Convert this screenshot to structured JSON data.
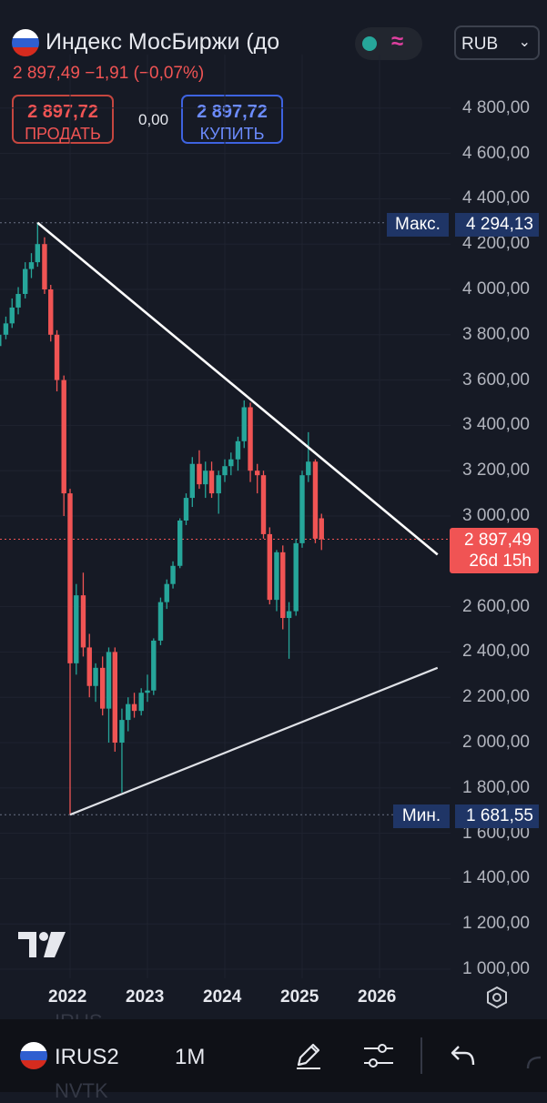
{
  "header": {
    "title": "Индекс МосБиржи (до",
    "currency": "RUB",
    "price_line": "2 897,49  −1,91 (−0,07%)"
  },
  "trade": {
    "sell_price": "2 897,72",
    "sell_label": "ПРОДАТЬ",
    "spread": "0,00",
    "buy_price": "2 897,72",
    "buy_label": "КУПИТЬ"
  },
  "chart_labels": {
    "max_label": "Макс.",
    "max_value": "4 294,13",
    "min_label": "Мин.",
    "min_value": "1 681,55",
    "last_price": "2 897,49",
    "countdown": "26d 15h"
  },
  "bottom": {
    "symbol": "IRUS2",
    "interval": "1M",
    "ghost_top": "IRUS",
    "ghost_bottom": "NVTK"
  },
  "colors": {
    "background": "#161a25",
    "up": "#26a69a",
    "down": "#f05454",
    "trendline": "#ffffff",
    "label_bg": "#1f3566"
  },
  "chart_data": {
    "type": "candlestick",
    "interval": "monthly",
    "y_ticks": [
      "4 800,00",
      "4 600,00",
      "4 400,00",
      "4 200,00",
      "4 000,00",
      "3 800,00",
      "3 600,00",
      "3 400,00",
      "3 200,00",
      "3 000,00",
      "2 600,00",
      "2 400,00",
      "2 200,00",
      "2 000,00",
      "1 800,00",
      "1 600,00",
      "1 400,00",
      "1 200,00",
      "1 000,00"
    ],
    "y_tick_values": [
      4800,
      4600,
      4400,
      4200,
      4000,
      3800,
      3600,
      3400,
      3200,
      3000,
      2600,
      2400,
      2200,
      2000,
      1800,
      1600,
      1400,
      1200,
      1000
    ],
    "x_ticks": [
      "2022",
      "2023",
      "2024",
      "2025",
      "2026"
    ],
    "ylim": [
      950,
      5050
    ],
    "xlim": [
      2021.0,
      2026.75
    ],
    "grid": true,
    "max": 4294.13,
    "min": 1681.55,
    "last": 2897.49,
    "candles": [
      {
        "t": 2021.0,
        "o": 3770,
        "h": 3800,
        "l": 3700,
        "c": 3750
      },
      {
        "t": 2021.08,
        "o": 3750,
        "h": 3820,
        "l": 3680,
        "c": 3800
      },
      {
        "t": 2021.17,
        "o": 3800,
        "h": 3880,
        "l": 3780,
        "c": 3850
      },
      {
        "t": 2021.25,
        "o": 3850,
        "h": 3960,
        "l": 3830,
        "c": 3920
      },
      {
        "t": 2021.33,
        "o": 3920,
        "h": 4010,
        "l": 3890,
        "c": 3980
      },
      {
        "t": 2021.42,
        "o": 3980,
        "h": 4120,
        "l": 3960,
        "c": 4090
      },
      {
        "t": 2021.5,
        "o": 4090,
        "h": 4160,
        "l": 4050,
        "c": 4120
      },
      {
        "t": 2021.58,
        "o": 4120,
        "h": 4294,
        "l": 4100,
        "c": 4200
      },
      {
        "t": 2021.67,
        "o": 4200,
        "h": 4230,
        "l": 3980,
        "c": 4000
      },
      {
        "t": 2021.75,
        "o": 4000,
        "h": 4020,
        "l": 3770,
        "c": 3800
      },
      {
        "t": 2021.83,
        "o": 3800,
        "h": 3820,
        "l": 3550,
        "c": 3600
      },
      {
        "t": 2021.92,
        "o": 3600,
        "h": 3620,
        "l": 3000,
        "c": 3100
      },
      {
        "t": 2022.0,
        "o": 3100,
        "h": 3120,
        "l": 1682,
        "c": 2350
      },
      {
        "t": 2022.08,
        "o": 2350,
        "h": 2700,
        "l": 2300,
        "c": 2650
      },
      {
        "t": 2022.17,
        "o": 2650,
        "h": 2750,
        "l": 2380,
        "c": 2420
      },
      {
        "t": 2022.25,
        "o": 2420,
        "h": 2480,
        "l": 2200,
        "c": 2250
      },
      {
        "t": 2022.33,
        "o": 2250,
        "h": 2350,
        "l": 2180,
        "c": 2330
      },
      {
        "t": 2022.42,
        "o": 2330,
        "h": 2380,
        "l": 2120,
        "c": 2150
      },
      {
        "t": 2022.5,
        "o": 2150,
        "h": 2420,
        "l": 2000,
        "c": 2400
      },
      {
        "t": 2022.58,
        "o": 2400,
        "h": 2420,
        "l": 1960,
        "c": 2000
      },
      {
        "t": 2022.67,
        "o": 2000,
        "h": 2150,
        "l": 1780,
        "c": 2100
      },
      {
        "t": 2022.75,
        "o": 2100,
        "h": 2200,
        "l": 2050,
        "c": 2170
      },
      {
        "t": 2022.83,
        "o": 2170,
        "h": 2220,
        "l": 2110,
        "c": 2140
      },
      {
        "t": 2022.92,
        "o": 2140,
        "h": 2240,
        "l": 2120,
        "c": 2220
      },
      {
        "t": 2023.0,
        "o": 2220,
        "h": 2300,
        "l": 2180,
        "c": 2230
      },
      {
        "t": 2023.08,
        "o": 2230,
        "h": 2460,
        "l": 2210,
        "c": 2450
      },
      {
        "t": 2023.17,
        "o": 2450,
        "h": 2640,
        "l": 2430,
        "c": 2620
      },
      {
        "t": 2023.25,
        "o": 2620,
        "h": 2720,
        "l": 2590,
        "c": 2700
      },
      {
        "t": 2023.33,
        "o": 2700,
        "h": 2800,
        "l": 2680,
        "c": 2780
      },
      {
        "t": 2023.42,
        "o": 2780,
        "h": 2990,
        "l": 2770,
        "c": 2980
      },
      {
        "t": 2023.5,
        "o": 2980,
        "h": 3100,
        "l": 2960,
        "c": 3080
      },
      {
        "t": 2023.58,
        "o": 3080,
        "h": 3260,
        "l": 3040,
        "c": 3230
      },
      {
        "t": 2023.67,
        "o": 3230,
        "h": 3290,
        "l": 3120,
        "c": 3140
      },
      {
        "t": 2023.75,
        "o": 3140,
        "h": 3240,
        "l": 3080,
        "c": 3200
      },
      {
        "t": 2023.83,
        "o": 3200,
        "h": 3240,
        "l": 3080,
        "c": 3100
      },
      {
        "t": 2023.92,
        "o": 3100,
        "h": 3200,
        "l": 3010,
        "c": 3180
      },
      {
        "t": 2024.0,
        "o": 3180,
        "h": 3250,
        "l": 3150,
        "c": 3220
      },
      {
        "t": 2024.08,
        "o": 3220,
        "h": 3280,
        "l": 3180,
        "c": 3250
      },
      {
        "t": 2024.17,
        "o": 3250,
        "h": 3350,
        "l": 3200,
        "c": 3330
      },
      {
        "t": 2024.25,
        "o": 3330,
        "h": 3510,
        "l": 3300,
        "c": 3480
      },
      {
        "t": 2024.33,
        "o": 3480,
        "h": 3500,
        "l": 3150,
        "c": 3200
      },
      {
        "t": 2024.42,
        "o": 3200,
        "h": 3230,
        "l": 3100,
        "c": 3180
      },
      {
        "t": 2024.5,
        "o": 3180,
        "h": 3200,
        "l": 2900,
        "c": 2920
      },
      {
        "t": 2024.58,
        "o": 2920,
        "h": 2950,
        "l": 2610,
        "c": 2630
      },
      {
        "t": 2024.67,
        "o": 2630,
        "h": 2850,
        "l": 2580,
        "c": 2840
      },
      {
        "t": 2024.75,
        "o": 2840,
        "h": 2870,
        "l": 2500,
        "c": 2550
      },
      {
        "t": 2024.83,
        "o": 2550,
        "h": 2620,
        "l": 2370,
        "c": 2580
      },
      {
        "t": 2024.92,
        "o": 2580,
        "h": 2900,
        "l": 2560,
        "c": 2880
      },
      {
        "t": 2025.0,
        "o": 2880,
        "h": 3200,
        "l": 2860,
        "c": 3180
      },
      {
        "t": 2025.08,
        "o": 3180,
        "h": 3370,
        "l": 3150,
        "c": 3240
      },
      {
        "t": 2025.17,
        "o": 3240,
        "h": 3250,
        "l": 2880,
        "c": 2900
      },
      {
        "t": 2025.25,
        "o": 2990,
        "h": 3010,
        "l": 2850,
        "c": 2897
      }
    ],
    "trendlines": [
      {
        "from": [
          2021.58,
          4294
        ],
        "to": [
          2026.75,
          2830
        ]
      },
      {
        "from": [
          2022.0,
          1682
        ],
        "to": [
          2026.75,
          2330
        ]
      }
    ]
  }
}
